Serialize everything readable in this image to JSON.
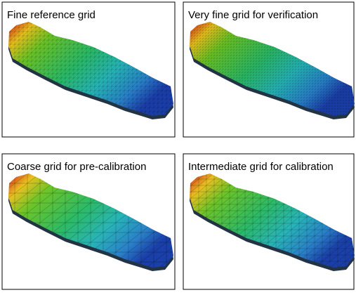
{
  "panels": [
    {
      "title": "Fine reference grid"
    },
    {
      "title": "Very fine grid for verification"
    },
    {
      "title": "Coarse grid for pre-calibration"
    },
    {
      "title": "Intermediate grid for calibration"
    }
  ]
}
